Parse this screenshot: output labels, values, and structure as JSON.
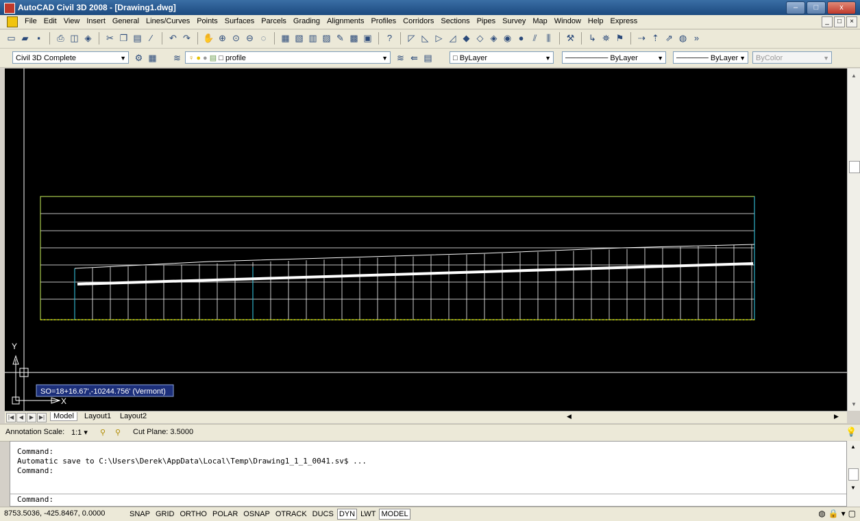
{
  "window": {
    "title": "AutoCAD Civil 3D 2008 - [Drawing1.dwg]",
    "controls": [
      "–",
      "□",
      "x"
    ]
  },
  "menu": {
    "items": [
      "File",
      "Edit",
      "View",
      "Insert",
      "General",
      "Lines/Curves",
      "Points",
      "Surfaces",
      "Parcels",
      "Grading",
      "Alignments",
      "Profiles",
      "Corridors",
      "Sections",
      "Pipes",
      "Survey",
      "Map",
      "Window",
      "Help",
      "Express"
    ],
    "mdi_controls": [
      "_",
      "□",
      "×"
    ]
  },
  "toolbar2": {
    "workspace": "Civil 3D Complete",
    "layer": "profile",
    "color": "ByLayer",
    "linetype": "ByLayer",
    "lineweight": "ByLayer",
    "plotstyle": "ByColor"
  },
  "viewport": {
    "tooltip": "SO=18+16.67',-10244.756' (Vermont)",
    "ucs_y": "Y",
    "ucs_x": "X",
    "colors": {
      "grid": "#ffffff",
      "frame": "#c8f05a",
      "profile": "#ffffff",
      "station_marker": "#2fb0c9",
      "ticks": "#e8e800"
    }
  },
  "tabs": {
    "items": [
      "Model",
      "Layout1",
      "Layout2"
    ],
    "active": "Model"
  },
  "status": {
    "annotation_scale_label": "Annotation Scale:",
    "annotation_scale_value": "1:1",
    "cut_plane": "Cut Plane: 3.5000"
  },
  "command": {
    "history": [
      "Command:",
      "Automatic save to C:\\Users\\Derek\\AppData\\Local\\Temp\\Drawing1_1_1_0041.sv$ ...",
      "Command:"
    ],
    "prompt": "Command:"
  },
  "statusbar": {
    "coords": "8753.5036, -425.8467, 0.0000",
    "toggles": [
      {
        "label": "SNAP",
        "on": false
      },
      {
        "label": "GRID",
        "on": false
      },
      {
        "label": "ORTHO",
        "on": false
      },
      {
        "label": "POLAR",
        "on": false
      },
      {
        "label": "OSNAP",
        "on": false
      },
      {
        "label": "OTRACK",
        "on": false
      },
      {
        "label": "DUCS",
        "on": false
      },
      {
        "label": "DYN",
        "on": true
      },
      {
        "label": "LWT",
        "on": false
      },
      {
        "label": "MODEL",
        "on": true
      }
    ]
  }
}
